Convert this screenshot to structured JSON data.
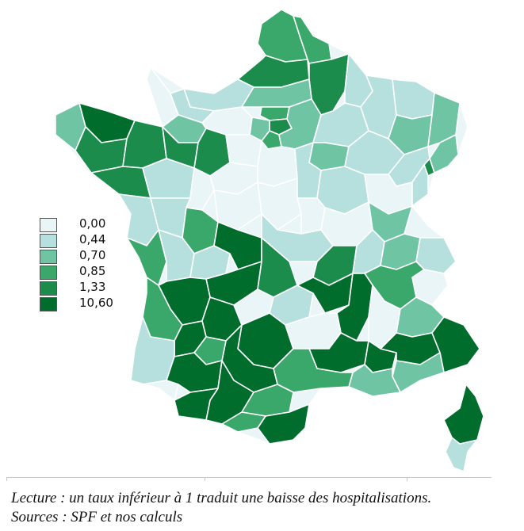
{
  "legend": {
    "items": [
      {
        "label": "0,00",
        "color": "#eaf5f7"
      },
      {
        "label": "0,44",
        "color": "#b5e0dd"
      },
      {
        "label": "0,70",
        "color": "#6fc4a3"
      },
      {
        "label": "0,85",
        "color": "#3aa86a"
      },
      {
        "label": "1,33",
        "color": "#1c8c4c"
      },
      {
        "label": "10,60",
        "color": "#006d2c"
      }
    ]
  },
  "caption": {
    "lecture": "Lecture : un taux inférieur à 1 traduit une baisse des hospitalisations.",
    "sources": "Sources : SPF et nos calculs"
  }
}
